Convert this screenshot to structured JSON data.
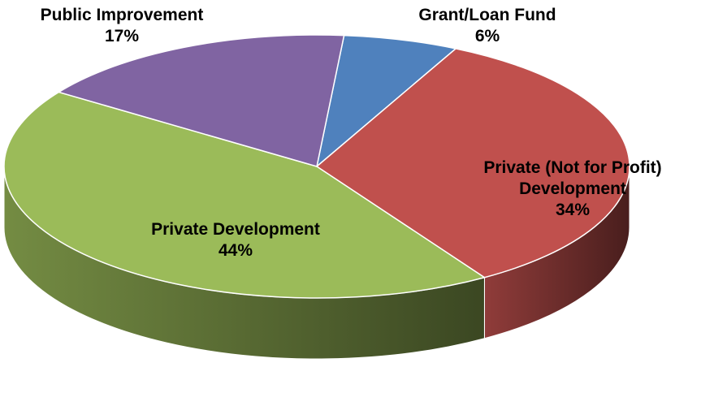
{
  "chart_data": {
    "type": "pie",
    "categories": [
      "Grant/Loan Fund",
      "Private (Not for Profit) Development",
      "Private Development",
      "Public Improvement"
    ],
    "values": [
      6,
      34,
      44,
      17
    ],
    "value_labels": [
      "6%",
      "34%",
      "44%",
      "17%"
    ],
    "colors": [
      "#4f81bd",
      "#c0504d",
      "#9bbb59",
      "#8064a2"
    ]
  }
}
